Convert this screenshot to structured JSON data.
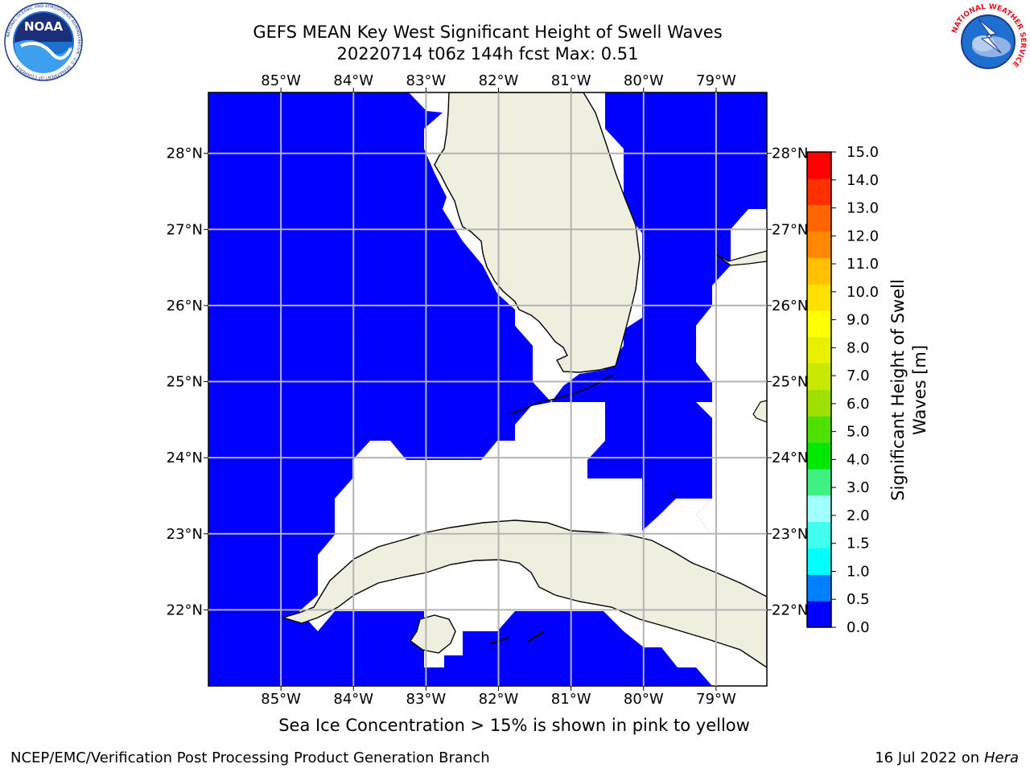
{
  "header": {
    "title_line1": "GEFS MEAN Key West Significant Height of Swell Waves",
    "title_line2": "20220714 t06z 144h fcst   Max: 0.51"
  },
  "logos": {
    "left": {
      "text": "NOAA",
      "ring_text": "NATIONAL OCEANIC AND ATMOSPHERIC ADMINISTRATION · U.S. DEPARTMENT OF COMMERCE"
    },
    "right": {
      "ring_text": "NATIONAL WEATHER SERVICE"
    }
  },
  "colors": {
    "ocean_low": "#0000ff",
    "no_data": "#ffffff",
    "land": "#efefdf",
    "grid": "#b3b3b3",
    "coast": "#000000"
  },
  "chart_data": {
    "type": "heatmap",
    "variable": "Significant Height of Swell Waves",
    "max_value": 0.51,
    "lon_ticks": [
      "85°W",
      "84°W",
      "83°W",
      "82°W",
      "81°W",
      "80°W",
      "79°W"
    ],
    "lon_values": [
      -85,
      -84,
      -83,
      -82,
      -81,
      -80,
      -79
    ],
    "lat_ticks": [
      "28°N",
      "27°N",
      "26°N",
      "25°N",
      "24°N",
      "23°N",
      "22°N"
    ],
    "lat_values": [
      28,
      27,
      26,
      25,
      24,
      23,
      22
    ],
    "lon_range": [
      -86.0,
      -78.3
    ],
    "lat_range": [
      21.0,
      28.8
    ],
    "colorbar": {
      "label": "Significant Height of Swell Waves [m]",
      "ticks": [
        "15.0",
        "14.0",
        "13.0",
        "12.0",
        "11.0",
        "10.0",
        "9.0",
        "8.0",
        "7.0",
        "6.0",
        "5.0",
        "4.0",
        "3.0",
        "2.0",
        "1.5",
        "1.0",
        "0.5",
        "0.0"
      ],
      "colors": [
        "#0000ff",
        "#0080ff",
        "#00ffff",
        "#40ffef",
        "#a0ffff",
        "#40f080",
        "#00e800",
        "#50e000",
        "#a0e000",
        "#c8e800",
        "#e8f000",
        "#ffff00",
        "#ffe000",
        "#ffc000",
        "#ff8800",
        "#ff6600",
        "#ff3000",
        "#ff0000"
      ]
    }
  },
  "footer": {
    "note": "Sea Ice Concentration > 15% is shown in pink to yellow",
    "credit": "NCEP/EMC/Verification Post Processing Product Generation Branch",
    "date": "16 Jul 2022 on ",
    "host": "Hera"
  }
}
